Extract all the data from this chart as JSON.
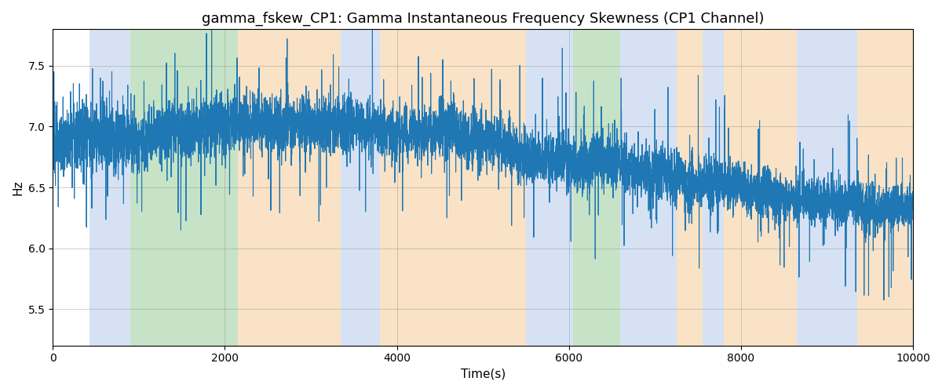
{
  "title": "gamma_fskew_CP1: Gamma Instantaneous Frequency Skewness (CP1 Channel)",
  "xlabel": "Time(s)",
  "ylabel": "Hz",
  "xlim": [
    0,
    10000
  ],
  "ylim": [
    5.2,
    7.8
  ],
  "yticks": [
    5.5,
    6.0,
    6.5,
    7.0,
    7.5
  ],
  "xticks": [
    0,
    2000,
    4000,
    6000,
    8000,
    10000
  ],
  "line_color": "#1f77b4",
  "line_width": 0.8,
  "background_color": "#ffffff",
  "bands": [
    {
      "xmin": 430,
      "xmax": 900,
      "color": "#aec6e8",
      "alpha": 0.5
    },
    {
      "xmin": 900,
      "xmax": 2150,
      "color": "#90c990",
      "alpha": 0.5
    },
    {
      "xmin": 2150,
      "xmax": 3350,
      "color": "#f5c78e",
      "alpha": 0.5
    },
    {
      "xmin": 3350,
      "xmax": 3800,
      "color": "#aec6e8",
      "alpha": 0.5
    },
    {
      "xmin": 3800,
      "xmax": 5500,
      "color": "#f5c78e",
      "alpha": 0.5
    },
    {
      "xmin": 5500,
      "xmax": 6050,
      "color": "#aec6e8",
      "alpha": 0.5
    },
    {
      "xmin": 6050,
      "xmax": 6600,
      "color": "#90c990",
      "alpha": 0.5
    },
    {
      "xmin": 6600,
      "xmax": 7250,
      "color": "#aec6e8",
      "alpha": 0.5
    },
    {
      "xmin": 7250,
      "xmax": 7550,
      "color": "#f5c78e",
      "alpha": 0.5
    },
    {
      "xmin": 7550,
      "xmax": 7800,
      "color": "#aec6e8",
      "alpha": 0.5
    },
    {
      "xmin": 7800,
      "xmax": 8650,
      "color": "#f5c78e",
      "alpha": 0.5
    },
    {
      "xmin": 8650,
      "xmax": 9350,
      "color": "#aec6e8",
      "alpha": 0.5
    },
    {
      "xmin": 9350,
      "xmax": 10000,
      "color": "#f5c78e",
      "alpha": 0.5
    }
  ],
  "seed": 42,
  "n_points": 8000,
  "title_fontsize": 13
}
